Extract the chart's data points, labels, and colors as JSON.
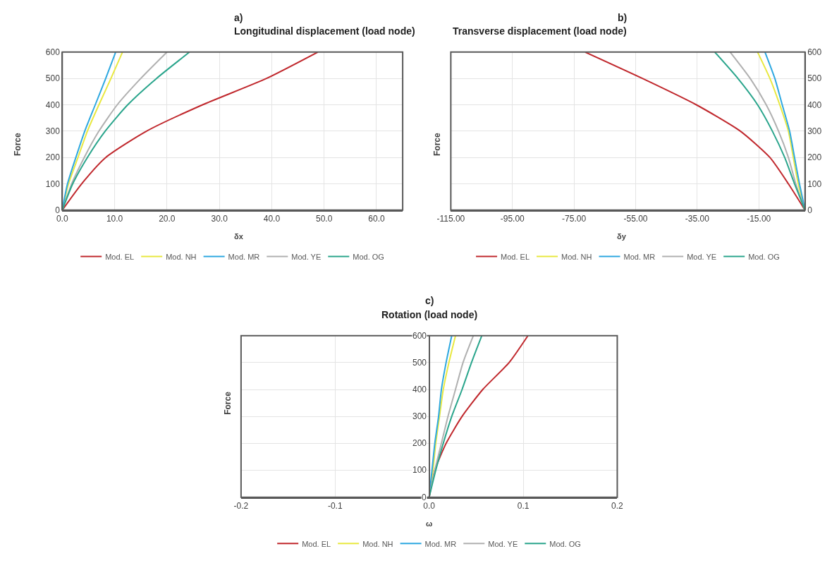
{
  "chart_data": [
    {
      "type": "line",
      "title": "a)",
      "subtitle": "Longitudinal displacement (load node)",
      "xlabel": "δx",
      "ylabel": "Force",
      "xlim": [
        0,
        65
      ],
      "xticks": [
        {
          "value": 0,
          "label": "0.0"
        },
        {
          "value": 10,
          "label": "10.0"
        },
        {
          "value": 20,
          "label": "20.0"
        },
        {
          "value": 30,
          "label": "30.0"
        },
        {
          "value": 40,
          "label": "40.0"
        },
        {
          "value": 50,
          "label": "50.0"
        },
        {
          "value": 60,
          "label": "60.0"
        }
      ],
      "ylim": [
        0,
        600
      ],
      "yticks": [
        0,
        100,
        200,
        300,
        400,
        500,
        600
      ],
      "grid": true,
      "legend": "bottom",
      "marker": "none",
      "line_style": "solid",
      "series": [
        {
          "name": "Mod. EL",
          "color": "#c0282d",
          "x": [
            0,
            3.7,
            8.3,
            16.1,
            26.8,
            39,
            48.8
          ],
          "values": [
            0,
            100,
            200,
            300,
            400,
            500,
            600
          ]
        },
        {
          "name": "Mod. NH",
          "color": "#e8e840",
          "x": [
            0,
            1.2,
            3.0,
            4.8,
            7.0,
            9.3,
            11.5
          ],
          "values": [
            0,
            100,
            200,
            300,
            400,
            500,
            600
          ]
        },
        {
          "name": "Mod. MR",
          "color": "#2ea8e0",
          "x": [
            0,
            1.0,
            2.6,
            4.3,
            6.3,
            8.3,
            10.2
          ],
          "values": [
            0,
            100,
            200,
            300,
            400,
            500,
            600
          ]
        },
        {
          "name": "Mod. YE",
          "color": "#b0b0b0",
          "x": [
            0,
            1.8,
            4.2,
            7,
            10.5,
            15,
            20
          ],
          "values": [
            0,
            100,
            200,
            300,
            400,
            500,
            600
          ]
        },
        {
          "name": "Mod. OG",
          "color": "#2aa58c",
          "x": [
            0,
            2.0,
            4.8,
            8.2,
            12.5,
            18,
            24.3
          ],
          "values": [
            0,
            100,
            200,
            300,
            400,
            500,
            600
          ]
        }
      ]
    },
    {
      "type": "line",
      "title": "b)",
      "subtitle": "Transverse displacement (load node)",
      "xlabel": "δy",
      "ylabel": "Force",
      "xlim": [
        -115,
        0
      ],
      "xticks": [
        {
          "value": -115,
          "label": "-115.00"
        },
        {
          "value": -95,
          "label": "-95.00"
        },
        {
          "value": -75,
          "label": "-75.00"
        },
        {
          "value": -55,
          "label": "-55.00"
        },
        {
          "value": -35,
          "label": "-35.00"
        },
        {
          "value": -15,
          "label": "-15.00"
        }
      ],
      "ylim": [
        0,
        600
      ],
      "yticks": [
        0,
        100,
        200,
        300,
        400,
        500,
        600
      ],
      "grid": true,
      "legend": "bottom",
      "marker": "none",
      "line_style": "solid",
      "series": [
        {
          "name": "Mod. EL",
          "color": "#c0282d",
          "x": [
            0,
            -5.4,
            -11.4,
            -21,
            -35.3,
            -52.8,
            -71.4
          ],
          "values": [
            0,
            100,
            200,
            300,
            400,
            500,
            600
          ]
        },
        {
          "name": "Mod. NH",
          "color": "#e8e840",
          "x": [
            0,
            -2.2,
            -3.8,
            -5.4,
            -8.2,
            -11.4,
            -15.4
          ],
          "values": [
            0,
            100,
            200,
            300,
            400,
            500,
            600
          ]
        },
        {
          "name": "Mod. MR",
          "color": "#2ea8e0",
          "x": [
            0,
            -1.8,
            -3.4,
            -5,
            -7.4,
            -9.8,
            -13
          ],
          "values": [
            0,
            100,
            200,
            300,
            400,
            500,
            600
          ]
        },
        {
          "name": "Mod. YE",
          "color": "#b0b0b0",
          "x": [
            0,
            -3,
            -5.4,
            -8.6,
            -12.6,
            -17.8,
            -24.3
          ],
          "values": [
            0,
            100,
            200,
            300,
            400,
            500,
            600
          ]
        },
        {
          "name": "Mod. OG",
          "color": "#2aa58c",
          "x": [
            0,
            -3.4,
            -6.6,
            -10.6,
            -15.4,
            -21.8,
            -29.3
          ],
          "values": [
            0,
            100,
            200,
            300,
            400,
            500,
            600
          ]
        }
      ]
    },
    {
      "type": "line",
      "title": "c)",
      "subtitle": "Rotation (load node)",
      "xlabel": "ω",
      "ylabel": "Force",
      "xlim": [
        -0.2,
        0.2
      ],
      "xticks": [
        -0.2,
        -0.1,
        {
          "value": 0,
          "label": "0.0"
        },
        0.1,
        0.2
      ],
      "ylim": [
        0,
        600
      ],
      "yticks": [
        0,
        100,
        200,
        300,
        400,
        500,
        600
      ],
      "grid": true,
      "legend": "bottom",
      "marker": "none",
      "line_style": "solid",
      "series": [
        {
          "name": "Mod. EL",
          "color": "#c0282d",
          "x": [
            0,
            0.006,
            0.018,
            0.035,
            0.057,
            0.085,
            0.105
          ],
          "values": [
            0,
            100,
            200,
            300,
            400,
            500,
            600
          ]
        },
        {
          "name": "Mod. NH",
          "color": "#e8e840",
          "x": [
            0,
            0.004,
            0.007,
            0.011,
            0.015,
            0.021,
            0.028
          ],
          "values": [
            0,
            100,
            200,
            300,
            400,
            500,
            600
          ]
        },
        {
          "name": "Mod. MR",
          "color": "#2ea8e0",
          "x": [
            0,
            0.003,
            0.006,
            0.01,
            0.013,
            0.018,
            0.024
          ],
          "values": [
            0,
            100,
            200,
            300,
            400,
            500,
            600
          ]
        },
        {
          "name": "Mod. YE",
          "color": "#b0b0b0",
          "x": [
            0,
            0.006,
            0.013,
            0.02,
            0.028,
            0.036,
            0.047
          ],
          "values": [
            0,
            100,
            200,
            300,
            400,
            500,
            600
          ]
        },
        {
          "name": "Mod. OG",
          "color": "#2aa58c",
          "x": [
            0,
            0.007,
            0.015,
            0.024,
            0.035,
            0.045,
            0.056
          ],
          "values": [
            0,
            100,
            200,
            300,
            400,
            500,
            600
          ]
        }
      ]
    }
  ]
}
